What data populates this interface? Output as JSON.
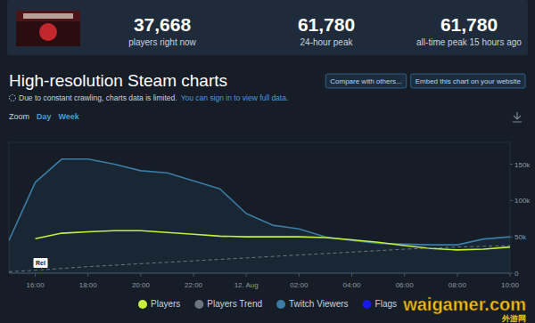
{
  "header": {
    "stats": [
      {
        "value": "37,668",
        "label": "players right now"
      },
      {
        "value": "61,780",
        "label": "24-hour peak"
      },
      {
        "value": "61,780",
        "label": "all-time peak 15 hours ago"
      }
    ]
  },
  "page": {
    "notice": "Due to constant crawling, charts data is limited.",
    "notice_link": "You can sign in to view full data.",
    "buttons": [
      "Compare with others...",
      "Embed this chart on your website"
    ],
    "zoom_label": "Zoom",
    "zoom_options": [
      "Day",
      "Week"
    ]
  },
  "watermark": {
    "text": "waigamer.com",
    "subtext": "外游网"
  },
  "chart_data": {
    "type": "line",
    "title": "High-resolution Steam charts",
    "x": [
      15,
      16,
      17,
      18,
      19,
      20,
      21,
      22,
      23,
      24,
      25,
      26,
      27,
      28,
      29,
      30,
      31,
      32,
      33,
      34
    ],
    "series": [
      {
        "name": "Players",
        "color": "#c8ee3e",
        "type": "line",
        "values": [
          null,
          47500,
          55000,
          57000,
          58500,
          58500,
          56000,
          53500,
          51000,
          50000,
          50000,
          50000,
          49000,
          46000,
          42500,
          38000,
          34000,
          32000,
          33000,
          36000
        ]
      },
      {
        "name": "Players Trend",
        "color": "#6b7680",
        "type": "line",
        "line_style": "dashed",
        "values": [
          2000,
          4000,
          6500,
          9000,
          11000,
          13000,
          15000,
          17000,
          19000,
          21000,
          23000,
          25000,
          27000,
          29000,
          31000,
          33000,
          34500,
          36000,
          37000,
          38000
        ]
      },
      {
        "name": "Twitch Viewers",
        "color": "#3a7ca5",
        "type": "area",
        "values": [
          45000,
          125000,
          157000,
          157000,
          150000,
          141000,
          138000,
          127000,
          116000,
          82000,
          66000,
          61000,
          50000,
          45000,
          41000,
          40000,
          39000,
          39000,
          47000,
          50000
        ]
      }
    ],
    "flags": {
      "name": "Flags",
      "color": "#1a1ae6",
      "items": [
        {
          "x": 16.2,
          "label": "Rel"
        }
      ]
    },
    "xlim": [
      15,
      34
    ],
    "xticks": [
      {
        "value": 16,
        "label": "16:00"
      },
      {
        "value": 18,
        "label": "18:00"
      },
      {
        "value": 20,
        "label": "20:00"
      },
      {
        "value": 22,
        "label": "22:00"
      },
      {
        "value": 24,
        "label": "12. Aug"
      },
      {
        "value": 26,
        "label": "02:00"
      },
      {
        "value": 28,
        "label": "04:00"
      },
      {
        "value": 30,
        "label": "06:00"
      },
      {
        "value": 32,
        "label": "08:00"
      },
      {
        "value": 34,
        "label": "10:00"
      }
    ],
    "ylim": [
      0,
      180000
    ],
    "yticks": [
      0,
      {
        "value": 50000,
        "label": "50k"
      },
      {
        "value": 100000,
        "label": "100k"
      },
      {
        "value": 150000,
        "label": "150k"
      }
    ],
    "grid": false,
    "legend": "bottom"
  }
}
